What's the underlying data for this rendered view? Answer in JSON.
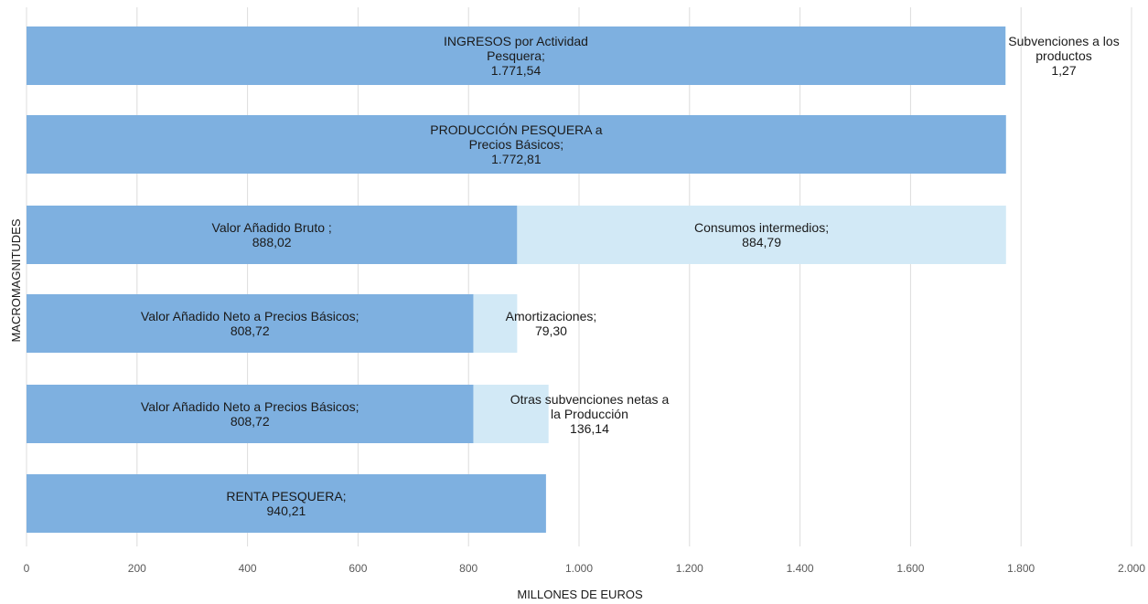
{
  "chart_data": {
    "type": "bar",
    "orientation": "horizontal",
    "stacked": true,
    "title": "",
    "xlabel": "MILLONES DE EUROS",
    "ylabel": "MACROMAGNITUDES",
    "xlim": [
      0,
      2000
    ],
    "x_ticks": [
      0,
      200,
      400,
      600,
      800,
      1000,
      1200,
      1400,
      1600,
      1800,
      2000
    ],
    "x_tick_labels": [
      "0",
      "200",
      "400",
      "600",
      "800",
      "1.000",
      "1.200",
      "1.400",
      "1.600",
      "1.800",
      "2.000"
    ],
    "grid": true,
    "legend": "none",
    "colors": {
      "primary": "#7eb0e0",
      "secondary": "#d2e9f6"
    },
    "rows": [
      {
        "segments": [
          {
            "value": 1771.54,
            "start": 0,
            "color": "primary",
            "label_lines": [
              "INGRESOS por Actividad",
              "Pesquera;",
              "1.771,54"
            ]
          },
          {
            "value": 1.27,
            "start": 1771.54,
            "color": "secondary",
            "label_lines": [
              "Subvenciones  a los",
              "productos",
              "1,27"
            ]
          }
        ]
      },
      {
        "segments": [
          {
            "value": 1772.81,
            "start": 0,
            "color": "primary",
            "label_lines": [
              "PRODUCCIÓN PESQUERA a",
              "Precios Básicos;",
              "1.772,81"
            ]
          }
        ]
      },
      {
        "segments": [
          {
            "value": 888.02,
            "start": 0,
            "color": "primary",
            "label_lines": [
              "Valor Añadido Bruto ;",
              "888,02"
            ]
          },
          {
            "value": 884.79,
            "start": 888.02,
            "color": "secondary",
            "label_lines": [
              "Consumos intermedios;",
              "884,79"
            ]
          }
        ]
      },
      {
        "segments": [
          {
            "value": 808.72,
            "start": 0,
            "color": "primary",
            "label_lines": [
              "Valor Añadido Neto a Precios Básicos;",
              "808,72"
            ]
          },
          {
            "value": 79.3,
            "start": 808.72,
            "color": "secondary",
            "label_lines": [
              "Amortizaciones;",
              "79,30"
            ]
          }
        ]
      },
      {
        "segments": [
          {
            "value": 808.72,
            "start": 0,
            "color": "primary",
            "label_lines": [
              "Valor Añadido Neto a Precios Básicos;",
              "808,72"
            ]
          },
          {
            "value": 136.14,
            "start": 808.72,
            "color": "secondary",
            "label_lines": [
              "Otras subvenciones netas a",
              "la Producción",
              "136,14"
            ]
          }
        ]
      },
      {
        "segments": [
          {
            "value": 940.21,
            "start": 0,
            "color": "primary",
            "label_lines": [
              "RENTA PESQUERA;",
              "940,21"
            ]
          }
        ]
      }
    ]
  }
}
